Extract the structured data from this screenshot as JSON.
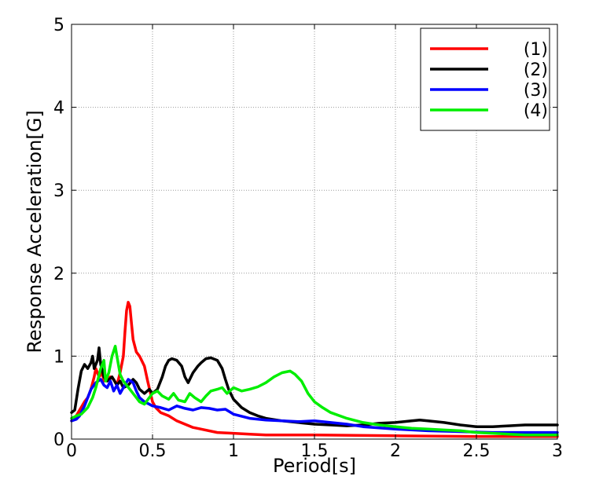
{
  "chart_data": {
    "type": "line",
    "title": "",
    "xlabel": "Period[s]",
    "ylabel": "Response Acceleration[G]",
    "xlim": [
      0,
      3
    ],
    "ylim": [
      0,
      5
    ],
    "xticks": [
      0,
      0.5,
      1,
      1.5,
      2,
      2.5,
      3
    ],
    "xtick_labels": [
      "0",
      "0.5",
      "1",
      "1.5",
      "2",
      "2.5",
      "3"
    ],
    "yticks": [
      0,
      1,
      2,
      3,
      4,
      5
    ],
    "ytick_labels": [
      "0",
      "1",
      "2",
      "3",
      "4",
      "5"
    ],
    "grid": true,
    "legend_position": "top-right",
    "series": [
      {
        "name": "(1)",
        "color": "#ff0000",
        "x": [
          0,
          0.02,
          0.05,
          0.08,
          0.1,
          0.12,
          0.14,
          0.15,
          0.17,
          0.19,
          0.2,
          0.22,
          0.24,
          0.26,
          0.28,
          0.3,
          0.32,
          0.33,
          0.34,
          0.35,
          0.36,
          0.37,
          0.38,
          0.4,
          0.42,
          0.45,
          0.47,
          0.5,
          0.52,
          0.55,
          0.6,
          0.65,
          0.7,
          0.75,
          0.8,
          0.9,
          1.0,
          1.1,
          1.2,
          1.5,
          2.0,
          2.5,
          3.0
        ],
        "y": [
          0.22,
          0.25,
          0.35,
          0.45,
          0.5,
          0.6,
          0.75,
          0.85,
          0.75,
          0.8,
          0.7,
          0.72,
          0.75,
          0.72,
          0.65,
          0.8,
          1.0,
          1.3,
          1.55,
          1.65,
          1.6,
          1.4,
          1.2,
          1.05,
          1.0,
          0.88,
          0.7,
          0.45,
          0.38,
          0.32,
          0.28,
          0.22,
          0.18,
          0.14,
          0.12,
          0.08,
          0.07,
          0.06,
          0.05,
          0.05,
          0.04,
          0.03,
          0.03
        ]
      },
      {
        "name": "(2)",
        "color": "#000000",
        "x": [
          0,
          0.02,
          0.04,
          0.06,
          0.08,
          0.1,
          0.12,
          0.13,
          0.14,
          0.16,
          0.17,
          0.18,
          0.2,
          0.22,
          0.25,
          0.28,
          0.3,
          0.32,
          0.35,
          0.38,
          0.4,
          0.42,
          0.45,
          0.48,
          0.5,
          0.53,
          0.56,
          0.58,
          0.6,
          0.62,
          0.65,
          0.68,
          0.7,
          0.72,
          0.75,
          0.78,
          0.8,
          0.83,
          0.86,
          0.9,
          0.93,
          0.95,
          0.97,
          1.0,
          1.05,
          1.1,
          1.15,
          1.2,
          1.3,
          1.4,
          1.5,
          1.6,
          1.7,
          1.8,
          1.9,
          2.0,
          2.1,
          2.15,
          2.2,
          2.3,
          2.4,
          2.5,
          2.6,
          2.7,
          2.8,
          2.9,
          3.0
        ],
        "y": [
          0.32,
          0.35,
          0.6,
          0.82,
          0.9,
          0.85,
          0.92,
          1.0,
          0.85,
          0.95,
          1.1,
          0.9,
          0.75,
          0.7,
          0.75,
          0.65,
          0.7,
          0.62,
          0.65,
          0.72,
          0.68,
          0.6,
          0.55,
          0.6,
          0.55,
          0.6,
          0.75,
          0.88,
          0.95,
          0.97,
          0.95,
          0.88,
          0.75,
          0.68,
          0.8,
          0.88,
          0.92,
          0.97,
          0.98,
          0.95,
          0.85,
          0.72,
          0.6,
          0.48,
          0.38,
          0.32,
          0.28,
          0.25,
          0.22,
          0.2,
          0.18,
          0.17,
          0.16,
          0.17,
          0.19,
          0.2,
          0.22,
          0.23,
          0.22,
          0.2,
          0.17,
          0.15,
          0.15,
          0.16,
          0.17,
          0.17,
          0.17
        ]
      },
      {
        "name": "(3)",
        "color": "#0000ff",
        "x": [
          0,
          0.03,
          0.05,
          0.08,
          0.1,
          0.12,
          0.15,
          0.18,
          0.2,
          0.22,
          0.24,
          0.26,
          0.28,
          0.3,
          0.32,
          0.35,
          0.38,
          0.4,
          0.42,
          0.45,
          0.48,
          0.5,
          0.55,
          0.6,
          0.65,
          0.7,
          0.75,
          0.8,
          0.85,
          0.9,
          0.95,
          1.0,
          1.1,
          1.2,
          1.3,
          1.4,
          1.5,
          1.6,
          1.7,
          1.8,
          2.0,
          2.2,
          2.4,
          2.6,
          2.8,
          3.0
        ],
        "y": [
          0.22,
          0.24,
          0.28,
          0.4,
          0.5,
          0.6,
          0.68,
          0.72,
          0.65,
          0.62,
          0.7,
          0.58,
          0.65,
          0.55,
          0.62,
          0.72,
          0.68,
          0.58,
          0.5,
          0.45,
          0.42,
          0.4,
          0.38,
          0.35,
          0.4,
          0.37,
          0.35,
          0.38,
          0.37,
          0.35,
          0.36,
          0.3,
          0.25,
          0.23,
          0.22,
          0.21,
          0.22,
          0.2,
          0.18,
          0.15,
          0.12,
          0.1,
          0.09,
          0.08,
          0.08,
          0.08
        ]
      },
      {
        "name": "(4)",
        "color": "#00ee00",
        "x": [
          0,
          0.03,
          0.06,
          0.1,
          0.13,
          0.15,
          0.18,
          0.2,
          0.21,
          0.23,
          0.25,
          0.27,
          0.28,
          0.3,
          0.32,
          0.34,
          0.36,
          0.38,
          0.4,
          0.42,
          0.45,
          0.48,
          0.5,
          0.53,
          0.56,
          0.6,
          0.63,
          0.66,
          0.7,
          0.73,
          0.76,
          0.8,
          0.83,
          0.86,
          0.9,
          0.93,
          0.96,
          1.0,
          1.05,
          1.1,
          1.15,
          1.2,
          1.25,
          1.3,
          1.35,
          1.38,
          1.42,
          1.46,
          1.5,
          1.55,
          1.6,
          1.7,
          1.8,
          1.9,
          2.0,
          2.1,
          2.2,
          2.3,
          2.4,
          2.5,
          2.6,
          2.7,
          2.8,
          2.9,
          3.0
        ],
        "y": [
          0.25,
          0.28,
          0.3,
          0.38,
          0.5,
          0.62,
          0.85,
          0.95,
          0.7,
          0.8,
          1.0,
          1.12,
          1.0,
          0.78,
          0.7,
          0.65,
          0.6,
          0.55,
          0.5,
          0.45,
          0.42,
          0.5,
          0.55,
          0.58,
          0.52,
          0.48,
          0.55,
          0.47,
          0.45,
          0.55,
          0.5,
          0.45,
          0.52,
          0.58,
          0.6,
          0.62,
          0.55,
          0.62,
          0.58,
          0.6,
          0.63,
          0.68,
          0.75,
          0.8,
          0.82,
          0.78,
          0.7,
          0.55,
          0.45,
          0.38,
          0.32,
          0.25,
          0.2,
          0.17,
          0.15,
          0.13,
          0.12,
          0.11,
          0.1,
          0.08,
          0.07,
          0.06,
          0.05,
          0.05,
          0.05
        ]
      }
    ]
  }
}
